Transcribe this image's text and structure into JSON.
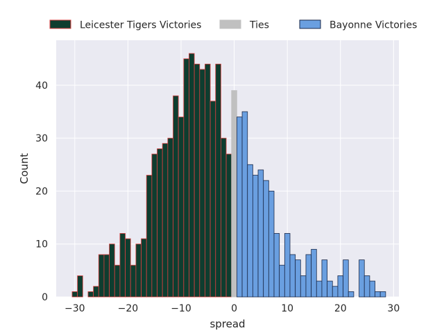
{
  "chart_data": {
    "type": "bar",
    "xlabel": "spread",
    "ylabel": "Count",
    "xlim": [
      -33.5,
      31
    ],
    "ylim": [
      0,
      48.5
    ],
    "xticks": [
      -30,
      -20,
      -10,
      0,
      10,
      20,
      30
    ],
    "yticks": [
      0,
      10,
      20,
      30,
      40
    ],
    "xtick_labels": [
      "−30",
      "−20",
      "−10",
      "0",
      "10",
      "20",
      "30"
    ],
    "ytick_labels": [
      "0",
      "10",
      "20",
      "30",
      "40"
    ],
    "grid": true,
    "legend_placement": "top, above plot",
    "bin_width": 1,
    "series": [
      {
        "name": "Leicester Tigers Victories",
        "color": "#0e3d2f",
        "edge_color": "#d94040",
        "bins": [
          {
            "x": -30,
            "count": 1
          },
          {
            "x": -29,
            "count": 4
          },
          {
            "x": -28,
            "count": 0
          },
          {
            "x": -27,
            "count": 1
          },
          {
            "x": -26,
            "count": 2
          },
          {
            "x": -25,
            "count": 8
          },
          {
            "x": -24,
            "count": 8
          },
          {
            "x": -23,
            "count": 10
          },
          {
            "x": -22,
            "count": 6
          },
          {
            "x": -21,
            "count": 12
          },
          {
            "x": -20,
            "count": 11
          },
          {
            "x": -19,
            "count": 6
          },
          {
            "x": -18,
            "count": 10
          },
          {
            "x": -17,
            "count": 11
          },
          {
            "x": -16,
            "count": 23
          },
          {
            "x": -15,
            "count": 27
          },
          {
            "x": -14,
            "count": 28
          },
          {
            "x": -13,
            "count": 29
          },
          {
            "x": -12,
            "count": 30
          },
          {
            "x": -11,
            "count": 38
          },
          {
            "x": -10,
            "count": 34
          },
          {
            "x": -9,
            "count": 45
          },
          {
            "x": -8,
            "count": 46
          },
          {
            "x": -7,
            "count": 44
          },
          {
            "x": -6,
            "count": 43
          },
          {
            "x": -5,
            "count": 44
          },
          {
            "x": -4,
            "count": 37
          },
          {
            "x": -3,
            "count": 44
          },
          {
            "x": -2,
            "count": 30
          },
          {
            "x": -1,
            "count": 27
          }
        ]
      },
      {
        "name": "Ties",
        "color": "#c0c0c0",
        "edge_color": "#c0c0c0",
        "bins": [
          {
            "x": 0,
            "count": 39
          }
        ]
      },
      {
        "name": "Bayonne Victories",
        "color": "#6a9fe0",
        "edge_color": "#1b2a4a",
        "bins": [
          {
            "x": 1,
            "count": 34
          },
          {
            "x": 2,
            "count": 35
          },
          {
            "x": 3,
            "count": 25
          },
          {
            "x": 4,
            "count": 23
          },
          {
            "x": 5,
            "count": 24
          },
          {
            "x": 6,
            "count": 22
          },
          {
            "x": 7,
            "count": 20
          },
          {
            "x": 8,
            "count": 12
          },
          {
            "x": 9,
            "count": 6
          },
          {
            "x": 10,
            "count": 12
          },
          {
            "x": 11,
            "count": 8
          },
          {
            "x": 12,
            "count": 7
          },
          {
            "x": 13,
            "count": 4
          },
          {
            "x": 14,
            "count": 8
          },
          {
            "x": 15,
            "count": 9
          },
          {
            "x": 16,
            "count": 3
          },
          {
            "x": 17,
            "count": 7
          },
          {
            "x": 18,
            "count": 3
          },
          {
            "x": 19,
            "count": 2
          },
          {
            "x": 20,
            "count": 4
          },
          {
            "x": 21,
            "count": 7
          },
          {
            "x": 22,
            "count": 1
          },
          {
            "x": 23,
            "count": 0
          },
          {
            "x": 24,
            "count": 7
          },
          {
            "x": 25,
            "count": 4
          },
          {
            "x": 26,
            "count": 3
          },
          {
            "x": 27,
            "count": 1
          },
          {
            "x": 28,
            "count": 1
          }
        ]
      }
    ],
    "colors": {
      "plot_background": "#eaeaf2",
      "grid": "#ffffff",
      "text": "#262626"
    }
  }
}
